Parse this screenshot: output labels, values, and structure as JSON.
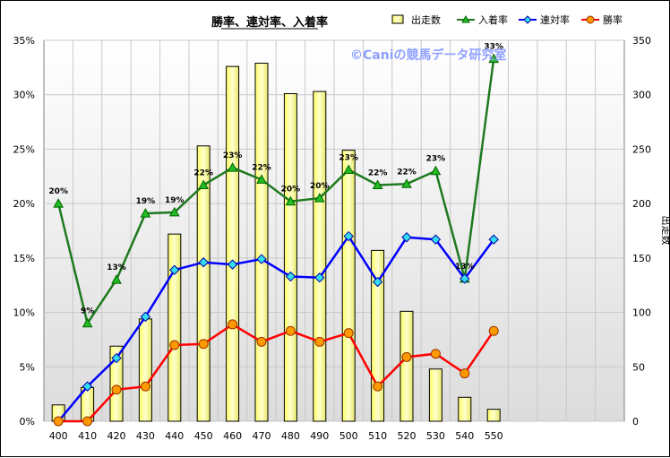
{
  "chart_data": {
    "type": "bar",
    "title": "勝率、連対率、入着率",
    "watermark": "©Caniの競馬データ研究室",
    "categories": [
      "400",
      "410",
      "420",
      "430",
      "440",
      "450",
      "460",
      "470",
      "480",
      "490",
      "500",
      "510",
      "520",
      "530",
      "540",
      "550"
    ],
    "left_axis": {
      "ylim": [
        0,
        35
      ],
      "ticks": [
        "0%",
        "5%",
        "10%",
        "15%",
        "20%",
        "25%",
        "30%",
        "35%"
      ]
    },
    "right_axis": {
      "label": "出走数",
      "ylim": [
        0,
        350
      ],
      "ticks": [
        "0",
        "50",
        "100",
        "150",
        "200",
        "250",
        "300",
        "350"
      ]
    },
    "grid": true,
    "legend_position": "top-right",
    "series": [
      {
        "name": "出走数",
        "type": "bar",
        "axis": "right",
        "color": "#ffff99",
        "values": [
          15,
          31,
          69,
          94,
          172,
          253,
          326,
          329,
          301,
          303,
          249,
          157,
          101,
          48,
          22,
          11
        ]
      },
      {
        "name": "入着率",
        "type": "line",
        "axis": "left",
        "color": "#1f7a1f",
        "marker": "triangle",
        "values": [
          20.0,
          9.0,
          13.0,
          19.1,
          19.2,
          21.7,
          23.3,
          22.2,
          20.2,
          20.5,
          23.1,
          21.7,
          21.8,
          23.0,
          13.1,
          33.3
        ],
        "labels": [
          "20%",
          "9%",
          "13%",
          "19%",
          "19%",
          "22%",
          "23%",
          "22%",
          "20%",
          "20%",
          "23%",
          "22%",
          "22%",
          "23%",
          "13%",
          "33%"
        ]
      },
      {
        "name": "連対率",
        "type": "line",
        "axis": "left",
        "color": "#0000ff",
        "marker": "diamond",
        "values": [
          0.0,
          3.2,
          5.8,
          9.6,
          13.9,
          14.6,
          14.4,
          14.9,
          13.3,
          13.2,
          17.0,
          12.8,
          16.9,
          16.7,
          13.1,
          16.7
        ]
      },
      {
        "name": "勝率",
        "type": "line",
        "axis": "left",
        "color": "#ff0000",
        "marker": "circle",
        "values": [
          0.0,
          0.0,
          2.9,
          3.2,
          7.0,
          7.1,
          8.9,
          7.3,
          8.3,
          7.3,
          8.1,
          3.2,
          5.9,
          6.2,
          4.4,
          8.3
        ]
      }
    ]
  }
}
